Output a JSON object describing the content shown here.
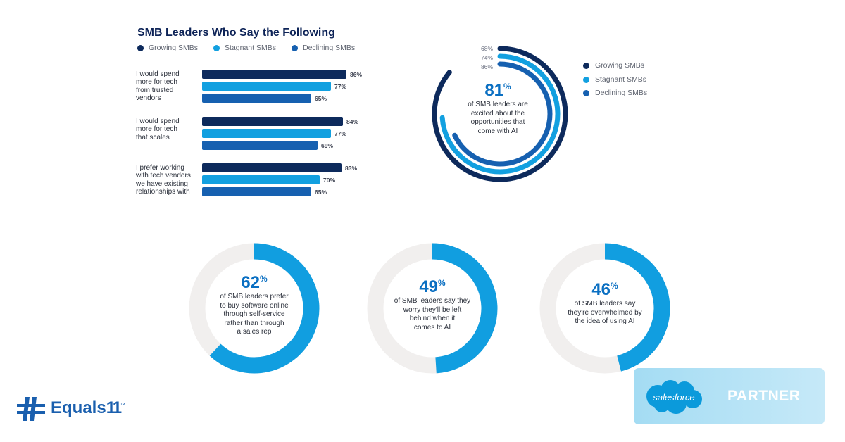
{
  "bar_chart": {
    "title": "SMB Leaders Who Say the Following",
    "legend": [
      "Growing SMBs",
      "Stagnant SMBs",
      "Declining SMBs"
    ],
    "colors": [
      "#0d2a5c",
      "#12a0e0",
      "#1660b0"
    ]
  },
  "ring_chart": {
    "center_value": "81",
    "center_unit": "%",
    "center_text": [
      "of SMB leaders are",
      "excited about the",
      "opportunities that",
      "come with AI"
    ],
    "legend": [
      "Growing SMBs",
      "Stagnant SMBs",
      "Declining SMBs"
    ],
    "value_labels": [
      "68%",
      "74%",
      "86%"
    ]
  },
  "stats": [
    {
      "value": "62",
      "unit": "%",
      "lines": [
        "of SMB leaders prefer",
        "to buy software online",
        "through self-service",
        "rather than through",
        "a sales rep"
      ]
    },
    {
      "value": "49",
      "unit": "%",
      "lines": [
        "of SMB leaders say they",
        "worry they'll be left",
        "behind when it",
        "comes to AI"
      ]
    },
    {
      "value": "46",
      "unit": "%",
      "lines": [
        "of SMB leaders say",
        "they're overwhelmed by",
        "the idea of using AI"
      ]
    }
  ],
  "chart_data": [
    {
      "type": "bar",
      "title": "SMB Leaders Who Say the Following",
      "categories": [
        [
          "I would spend",
          "more for tech",
          "from trusted",
          "vendors"
        ],
        [
          "I would spend",
          "more for tech",
          "that scales"
        ],
        [
          "I prefer working",
          "with tech vendors",
          "we have existing",
          "relationships with"
        ]
      ],
      "series": [
        {
          "name": "Growing SMBs",
          "values": [
            86,
            84,
            83
          ],
          "labels": [
            "86%",
            "84%",
            "83%"
          ]
        },
        {
          "name": "Stagnant SMBs",
          "values": [
            77,
            77,
            70
          ],
          "labels": [
            "77%",
            "77%",
            "70%"
          ]
        },
        {
          "name": "Declining SMBs",
          "values": [
            65,
            69,
            65
          ],
          "labels": [
            "65%",
            "69%",
            "65%"
          ]
        }
      ],
      "xlim": [
        0,
        100
      ],
      "legend_position": "top"
    },
    {
      "type": "pie",
      "style": "concentric-rings",
      "series": [
        {
          "name": "Growing SMBs",
          "value": 86
        },
        {
          "name": "Stagnant SMBs",
          "value": 74
        },
        {
          "name": "Declining SMBs",
          "value": 68
        }
      ],
      "legend_position": "right"
    },
    {
      "type": "pie",
      "style": "donut",
      "value": 62
    },
    {
      "type": "pie",
      "style": "donut",
      "value": 49
    },
    {
      "type": "pie",
      "style": "donut",
      "value": 46
    }
  ],
  "branding": {
    "salesforce_logo_text": "salesforce",
    "partner_label": "PARTNER",
    "equals_logo_text": "Equals",
    "equals_logo_mark": "11",
    "equals_tm": "™"
  }
}
